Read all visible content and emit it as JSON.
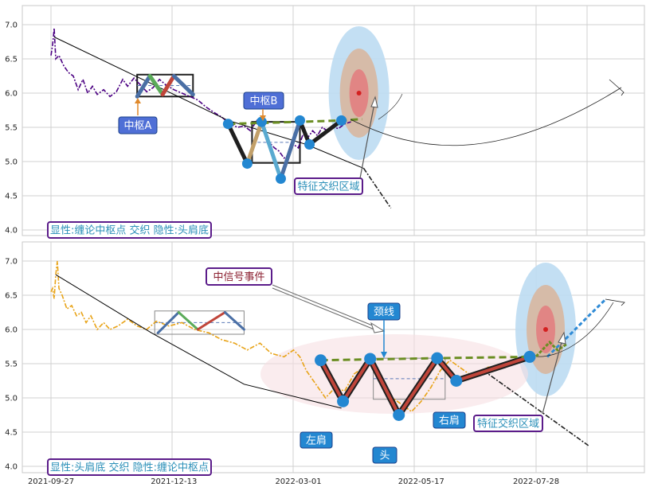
{
  "chart_data": [
    {
      "type": "line",
      "panel": "top",
      "ylim": [
        3.9,
        7.2
      ],
      "yticks": [
        "7.0",
        "6.5",
        "6.0",
        "5.5",
        "5.0",
        "4.5",
        "4.0"
      ],
      "grid": true,
      "series": [
        {
          "name": "price",
          "color": "#4b0082",
          "style": "dash-dot",
          "points": [
            [
              "2021-09-27",
              6.55
            ],
            [
              "2021-09-28",
              6.7
            ],
            [
              "2021-09-29",
              6.95
            ],
            [
              "2021-09-30",
              6.5
            ],
            [
              "2021-10-02",
              6.55
            ],
            [
              "2021-10-05",
              6.4
            ],
            [
              "2021-10-08",
              6.3
            ],
            [
              "2021-10-11",
              6.25
            ],
            [
              "2021-10-14",
              6.05
            ],
            [
              "2021-10-17",
              6.2
            ],
            [
              "2021-10-20",
              6.0
            ],
            [
              "2021-10-23",
              6.1
            ],
            [
              "2021-10-26",
              5.98
            ],
            [
              "2021-10-30",
              6.05
            ],
            [
              "2021-11-03",
              5.95
            ],
            [
              "2021-11-07",
              6.02
            ],
            [
              "2021-11-11",
              6.2
            ],
            [
              "2021-11-14",
              6.1
            ],
            [
              "2021-11-18",
              6.22
            ],
            [
              "2021-11-22",
              6.12
            ],
            [
              "2021-11-26",
              6.02
            ],
            [
              "2021-11-30",
              6.08
            ],
            [
              "2021-12-04",
              6.2
            ],
            [
              "2021-12-08",
              6.12
            ],
            [
              "2021-12-13",
              6.05
            ],
            [
              "2021-12-18",
              6.0
            ],
            [
              "2021-12-23",
              5.95
            ],
            [
              "2021-12-28",
              5.9
            ],
            [
              "2022-01-02",
              5.8
            ],
            [
              "2022-01-07",
              5.72
            ],
            [
              "2022-01-12",
              5.65
            ],
            [
              "2022-01-17",
              5.55
            ],
            [
              "2022-01-22",
              5.5
            ],
            [
              "2022-01-26",
              5.52
            ],
            [
              "2022-01-30",
              5.45
            ],
            [
              "2022-02-03",
              5.6
            ],
            [
              "2022-02-07",
              5.5
            ],
            [
              "2022-02-10",
              5.3
            ],
            [
              "2022-02-14",
              5.2
            ],
            [
              "2022-02-17",
              5.15
            ],
            [
              "2022-02-20",
              5.05
            ],
            [
              "2022-02-23",
              5.1
            ],
            [
              "2022-02-26",
              5.25
            ],
            [
              "2022-03-01",
              5.2
            ],
            [
              "2022-03-04",
              5.4
            ],
            [
              "2022-03-07",
              5.35
            ],
            [
              "2022-03-10",
              5.45
            ],
            [
              "2022-03-13",
              5.38
            ],
            [
              "2022-03-16",
              5.5
            ],
            [
              "2022-03-19",
              5.45
            ],
            [
              "2022-03-22",
              5.52
            ],
            [
              "2022-03-26",
              5.48
            ],
            [
              "2022-03-30",
              5.55
            ],
            [
              "2022-04-03",
              5.58
            ]
          ]
        },
        {
          "name": "trend",
          "color": "#000000",
          "style": "solid",
          "points": [
            [
              "2021-09-29",
              6.82
            ],
            [
              "2022-01-16",
              5.6
            ],
            [
              "2022-03-06",
              5.25
            ],
            [
              "2022-04-11",
              4.9
            ]
          ]
        },
        {
          "name": "trend-ext",
          "color": "#222222",
          "style": "dash-dot",
          "points": [
            [
              "2022-04-11",
              4.9
            ],
            [
              "2022-04-28",
              4.32
            ]
          ]
        },
        {
          "name": "zhongshu-a-stroke",
          "color": "#4a6fa5",
          "style": "thick",
          "points": [
            [
              "2021-11-20",
              5.95
            ],
            [
              "2021-11-28",
              6.25
            ],
            [
              "2021-12-06",
              5.98
            ],
            [
              "2021-12-13",
              6.25
            ],
            [
              "2021-12-25",
              5.98
            ]
          ]
        },
        {
          "name": "zhongshu-b-stroke",
          "color": "#1f1f1f",
          "style": "thick",
          "points": [
            [
              "2022-01-16",
              5.55
            ],
            [
              "2022-01-28",
              4.97
            ],
            [
              "2022-02-06",
              5.58
            ],
            [
              "2022-02-18",
              4.75
            ],
            [
              "2022-03-02",
              5.6
            ],
            [
              "2022-03-08",
              5.25
            ],
            [
              "2022-03-28",
              5.6
            ]
          ]
        },
        {
          "name": "green-dashed",
          "color": "#6b8e23",
          "style": "dashed",
          "points": [
            [
              "2022-01-16",
              5.55
            ],
            [
              "2022-03-02",
              5.58
            ],
            [
              "2022-03-28",
              5.6
            ],
            [
              "2022-04-10",
              5.62
            ]
          ]
        }
      ],
      "points": [
        {
          "x": "2022-01-16",
          "y": 5.55
        },
        {
          "x": "2022-01-28",
          "y": 4.97
        },
        {
          "x": "2022-02-06",
          "y": 5.58
        },
        {
          "x": "2022-02-18",
          "y": 4.75
        },
        {
          "x": "2022-03-02",
          "y": 5.6
        },
        {
          "x": "2022-03-08",
          "y": 5.25
        },
        {
          "x": "2022-03-28",
          "y": 5.6
        }
      ],
      "zones": [
        {
          "name": "zhongshu-a",
          "x0": "2021-11-20",
          "x1": "2021-12-25",
          "y0": 5.95,
          "y1": 6.27,
          "color": "#1f1f1f"
        },
        {
          "name": "zhongshu-b",
          "x0": "2022-01-31",
          "x1": "2022-03-02",
          "y0": 4.98,
          "y1": 5.58,
          "color": "#1f1f1f"
        }
      ],
      "target": {
        "x": "2022-04-08",
        "y": 6.0
      },
      "annotations": [
        {
          "key": "a",
          "text": "中枢A",
          "style": "blue-fill"
        },
        {
          "key": "b",
          "text": "中枢B",
          "style": "blue-fill"
        },
        {
          "key": "zone",
          "text": "特征交织区域",
          "style": "outline"
        },
        {
          "key": "legend",
          "text": "显性:缠论中枢点 交织 隐性:头肩底",
          "style": "outline"
        }
      ]
    },
    {
      "type": "line",
      "panel": "bottom",
      "ylim": [
        3.9,
        7.3
      ],
      "yticks": [
        "7.0",
        "6.5",
        "6.0",
        "5.5",
        "5.0",
        "4.5",
        "4.0"
      ],
      "xticks": [
        "2021-09-27",
        "2021-12-13",
        "2022-03-01",
        "2022-05-17",
        "2022-07-28"
      ],
      "grid": true,
      "series": [
        {
          "name": "price",
          "color": "#e8a317",
          "style": "dash-dot",
          "points": [
            [
              "2021-09-27",
              6.55
            ],
            [
              "2021-09-28",
              6.6
            ],
            [
              "2021-09-29",
              6.45
            ],
            [
              "2021-09-30",
              6.8
            ],
            [
              "2021-10-01",
              7.0
            ],
            [
              "2021-10-02",
              6.6
            ],
            [
              "2021-10-04",
              6.5
            ],
            [
              "2021-10-07",
              6.3
            ],
            [
              "2021-10-10",
              6.35
            ],
            [
              "2021-10-13",
              6.2
            ],
            [
              "2021-10-16",
              6.25
            ],
            [
              "2021-10-19",
              6.1
            ],
            [
              "2021-10-22",
              6.2
            ],
            [
              "2021-10-26",
              6.0
            ],
            [
              "2021-10-30",
              6.1
            ],
            [
              "2021-11-03",
              6.0
            ],
            [
              "2021-11-08",
              6.05
            ],
            [
              "2021-11-14",
              6.15
            ],
            [
              "2021-11-20",
              6.05
            ],
            [
              "2021-11-26",
              6.0
            ],
            [
              "2021-12-02",
              6.12
            ],
            [
              "2021-12-10",
              6.05
            ],
            [
              "2021-12-18",
              6.1
            ],
            [
              "2021-12-26",
              6.0
            ],
            [
              "2022-01-04",
              5.95
            ],
            [
              "2022-01-12",
              5.85
            ],
            [
              "2022-01-20",
              5.8
            ],
            [
              "2022-01-28",
              5.7
            ],
            [
              "2022-02-05",
              5.8
            ],
            [
              "2022-02-12",
              5.65
            ],
            [
              "2022-02-20",
              5.6
            ],
            [
              "2022-02-26",
              5.7
            ],
            [
              "2022-03-02",
              5.6
            ],
            [
              "2022-03-06",
              5.4
            ],
            [
              "2022-03-12",
              5.2
            ],
            [
              "2022-03-18",
              5.0
            ],
            [
              "2022-03-24",
              5.15
            ],
            [
              "2022-03-30",
              5.1
            ],
            [
              "2022-04-05",
              5.35
            ],
            [
              "2022-04-11",
              5.45
            ],
            [
              "2022-04-17",
              5.5
            ],
            [
              "2022-04-23",
              5.2
            ],
            [
              "2022-04-29",
              5.0
            ],
            [
              "2022-05-05",
              4.9
            ],
            [
              "2022-05-11",
              4.8
            ],
            [
              "2022-05-17",
              4.95
            ],
            [
              "2022-05-23",
              5.15
            ],
            [
              "2022-05-29",
              5.4
            ],
            [
              "2022-06-04",
              5.55
            ],
            [
              "2022-06-10",
              5.45
            ],
            [
              "2022-06-16",
              5.35
            ],
            [
              "2022-06-22",
              5.35
            ],
            [
              "2022-06-28",
              5.45
            ],
            [
              "2022-07-04",
              5.45
            ],
            [
              "2022-07-10",
              5.5
            ],
            [
              "2022-07-16",
              5.5
            ],
            [
              "2022-07-22",
              5.55
            ]
          ]
        },
        {
          "name": "trend",
          "color": "#000000",
          "style": "solid",
          "points": [
            [
              "2021-09-30",
              6.8
            ],
            [
              "2021-11-29",
              5.95
            ],
            [
              "2022-01-26",
              5.2
            ],
            [
              "2022-03-28",
              4.85
            ]
          ]
        },
        {
          "name": "trend-ext",
          "color": "#222222",
          "style": "dash-dot",
          "points": [
            [
              "2022-06-25",
              5.4
            ],
            [
              "2022-08-30",
              4.3
            ]
          ]
        },
        {
          "name": "zhongshu-stroke",
          "color": "#4a6fa5",
          "style": "medium",
          "points": [
            [
              "2021-12-03",
              5.95
            ],
            [
              "2021-12-16",
              6.25
            ],
            [
              "2021-12-28",
              6.0
            ],
            [
              "2022-01-14",
              6.25
            ],
            [
              "2022-01-26",
              6.0
            ]
          ]
        },
        {
          "name": "head-shoulders",
          "color": "#1f1f1f",
          "style": "thick-red",
          "points": [
            [
              "2022-03-15",
              5.55
            ],
            [
              "2022-03-29",
              4.95
            ],
            [
              "2022-04-15",
              5.57
            ],
            [
              "2022-05-03",
              4.75
            ],
            [
              "2022-05-27",
              5.58
            ],
            [
              "2022-06-08",
              5.25
            ],
            [
              "2022-07-24",
              5.6
            ]
          ]
        },
        {
          "name": "neckline",
          "color": "#6b8e23",
          "style": "dashed",
          "points": [
            [
              "2022-03-15",
              5.55
            ],
            [
              "2022-05-27",
              5.58
            ],
            [
              "2022-07-24",
              5.6
            ]
          ]
        },
        {
          "name": "breakout",
          "color": "#2f8bd6",
          "style": "dashed-thick",
          "points": [
            [
              "2022-08-04",
              5.6
            ],
            [
              "2022-08-18",
              5.92
            ],
            [
              "2022-08-30",
              6.2
            ],
            [
              "2022-09-10",
              6.45
            ]
          ]
        }
      ],
      "points": [
        {
          "x": "2022-03-15",
          "y": 5.55
        },
        {
          "x": "2022-03-29",
          "y": 4.95
        },
        {
          "x": "2022-04-15",
          "y": 5.57
        },
        {
          "x": "2022-05-03",
          "y": 4.75
        },
        {
          "x": "2022-05-27",
          "y": 5.58
        },
        {
          "x": "2022-06-08",
          "y": 5.25
        },
        {
          "x": "2022-07-24",
          "y": 5.6
        }
      ],
      "zones": [
        {
          "name": "zhongshu",
          "x0": "2021-12-01",
          "x1": "2022-01-26",
          "y0": 5.93,
          "y1": 6.27,
          "color": "#888888"
        },
        {
          "name": "head-zone",
          "x0": "2022-04-17",
          "x1": "2022-06-01",
          "y0": 4.98,
          "y1": 5.58,
          "color": "#888888"
        }
      ],
      "target": {
        "x": "2022-08-03",
        "y": 6.0
      },
      "annotations": [
        {
          "key": "signal",
          "text": "中信号事件",
          "style": "outline"
        },
        {
          "key": "neck",
          "text": "颈线",
          "style": "blue-fill"
        },
        {
          "key": "lshoulder",
          "text": "左肩",
          "style": "blue-fill"
        },
        {
          "key": "head",
          "text": "头",
          "style": "blue-fill"
        },
        {
          "key": "rshoulder",
          "text": "右肩",
          "style": "blue-fill"
        },
        {
          "key": "zone",
          "text": "特征交织区域",
          "style": "outline"
        },
        {
          "key": "legend",
          "text": "显性:头肩底 交织 隐性:缠论中枢点",
          "style": "outline"
        }
      ]
    }
  ]
}
